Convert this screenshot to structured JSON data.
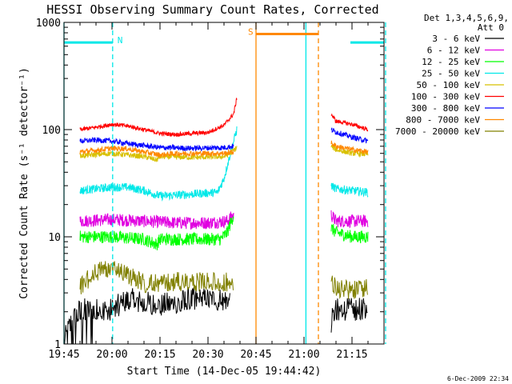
{
  "chart_data": {
    "type": "line",
    "title": "HESSI Observing Summary Count Rates, Corrected",
    "xlabel": "Start Time (14-Dec-05 19:44:42)",
    "ylabel": "Corrected Count Rate (s⁻¹ detector⁻¹)",
    "y_scale": "log",
    "ylim": [
      1,
      1000
    ],
    "x_units": "minutes since 19:45",
    "xlim": [
      0,
      100
    ],
    "x_ticks": [
      {
        "x": 0,
        "label": "19:45"
      },
      {
        "x": 15,
        "label": "20:00"
      },
      {
        "x": 30,
        "label": "20:15"
      },
      {
        "x": 45,
        "label": "20:30"
      },
      {
        "x": 60,
        "label": "20:45"
      },
      {
        "x": 75,
        "label": "21:00"
      },
      {
        "x": 90,
        "label": "21:15"
      }
    ],
    "y_ticks": [
      {
        "y": 1,
        "label": "1"
      },
      {
        "y": 10,
        "label": "10"
      },
      {
        "y": 100,
        "label": "100"
      },
      {
        "y": 1000,
        "label": "1000"
      }
    ],
    "legend": {
      "title_line1": "Det 1,3,4,5,6,9,",
      "title_line2": "Att 0",
      "placement": "right"
    },
    "series": [
      {
        "name": "3 - 6 keV",
        "color": "#000000",
        "noise": 0.35,
        "points": [
          [
            0,
            1.0
          ],
          [
            2,
            1.5
          ],
          [
            5,
            2.0
          ],
          [
            10,
            2.0
          ],
          [
            15,
            2.0
          ],
          [
            20,
            2.5
          ],
          [
            30,
            2.2
          ],
          [
            40,
            2.5
          ],
          [
            52,
            2.5
          ]
        ],
        "points2": [
          [
            83.5,
            1.5
          ],
          [
            85,
            2.0
          ],
          [
            90,
            2.0
          ],
          [
            95,
            2.0
          ]
        ]
      },
      {
        "name": "6 - 12 keV",
        "color": "#e000e0",
        "noise": 0.06,
        "points": [
          [
            5,
            14
          ],
          [
            15,
            14.5
          ],
          [
            25,
            14
          ],
          [
            35,
            13.5
          ],
          [
            45,
            13.5
          ],
          [
            51,
            14
          ],
          [
            53,
            16
          ]
        ],
        "points2": [
          [
            83.5,
            16
          ],
          [
            85,
            14
          ],
          [
            90,
            14
          ],
          [
            95,
            14
          ]
        ]
      },
      {
        "name": "12 - 25 keV",
        "color": "#00ff00",
        "noise": 0.06,
        "points": [
          [
            5,
            10
          ],
          [
            15,
            10
          ],
          [
            25,
            9.5
          ],
          [
            29,
            8.5
          ],
          [
            30,
            9.5
          ],
          [
            40,
            9.5
          ],
          [
            49,
            9.5
          ],
          [
            51,
            11
          ],
          [
            53,
            16
          ]
        ],
        "points2": [
          [
            83.5,
            12
          ],
          [
            85,
            11
          ],
          [
            90,
            10
          ],
          [
            95,
            10
          ]
        ]
      },
      {
        "name": "25 - 50 keV",
        "color": "#00e8e8",
        "noise": 0.04,
        "points": [
          [
            5,
            27
          ],
          [
            10,
            28
          ],
          [
            15,
            29
          ],
          [
            20,
            29
          ],
          [
            25,
            27
          ],
          [
            30,
            24
          ],
          [
            40,
            25
          ],
          [
            48,
            26
          ],
          [
            50,
            35
          ],
          [
            52,
            60
          ],
          [
            54,
            100
          ]
        ],
        "points2": [
          [
            83.5,
            30
          ],
          [
            85,
            28
          ],
          [
            90,
            27
          ],
          [
            95,
            26
          ]
        ]
      },
      {
        "name": "50 - 100 keV",
        "color": "#d8c000",
        "noise": 0.025,
        "points": [
          [
            5,
            57
          ],
          [
            15,
            60
          ],
          [
            25,
            56
          ],
          [
            29,
            52
          ],
          [
            30,
            56
          ],
          [
            40,
            55
          ],
          [
            50,
            56
          ],
          [
            52,
            60
          ],
          [
            54,
            68
          ]
        ],
        "points2": [
          [
            83.5,
            70
          ],
          [
            85,
            65
          ],
          [
            90,
            60
          ],
          [
            95,
            59
          ]
        ]
      },
      {
        "name": "100 - 300 keV",
        "color": "#ff0000",
        "noise": 0.02,
        "points": [
          [
            5,
            100
          ],
          [
            10,
            105
          ],
          [
            15,
            112
          ],
          [
            20,
            108
          ],
          [
            25,
            100
          ],
          [
            30,
            92
          ],
          [
            35,
            90
          ],
          [
            40,
            92
          ],
          [
            45,
            94
          ],
          [
            50,
            110
          ],
          [
            53,
            140
          ],
          [
            54,
            195
          ]
        ],
        "points2": [
          [
            83.5,
            140
          ],
          [
            85,
            120
          ],
          [
            90,
            112
          ],
          [
            95,
            100
          ]
        ]
      },
      {
        "name": "300 - 800 keV",
        "color": "#0000ff",
        "noise": 0.025,
        "points": [
          [
            5,
            78
          ],
          [
            10,
            80
          ],
          [
            15,
            78
          ],
          [
            20,
            74
          ],
          [
            30,
            68
          ],
          [
            40,
            67
          ],
          [
            50,
            68
          ],
          [
            53,
            70
          ]
        ],
        "points2": [
          [
            83.5,
            100
          ],
          [
            85,
            95
          ],
          [
            90,
            85
          ],
          [
            95,
            78
          ]
        ]
      },
      {
        "name": "800 - 7000 keV",
        "color": "#ff8800",
        "noise": 0.025,
        "points": [
          [
            5,
            62
          ],
          [
            10,
            64
          ],
          [
            15,
            67
          ],
          [
            20,
            66
          ],
          [
            25,
            62
          ],
          [
            30,
            58
          ],
          [
            35,
            60
          ],
          [
            40,
            60
          ],
          [
            50,
            60
          ],
          [
            53,
            62
          ]
        ],
        "points2": [
          [
            83.5,
            75
          ],
          [
            85,
            70
          ],
          [
            90,
            65
          ],
          [
            95,
            62
          ]
        ]
      },
      {
        "name": "7000 - 20000 keV",
        "color": "#808000",
        "noise": 0.3,
        "points": [
          [
            5,
            3.2
          ],
          [
            10,
            4.5
          ],
          [
            15,
            5.0
          ],
          [
            20,
            4.2
          ],
          [
            25,
            3.5
          ],
          [
            30,
            3.6
          ],
          [
            40,
            3.6
          ],
          [
            53,
            3.6
          ]
        ],
        "points2": [
          [
            83.5,
            3.5
          ],
          [
            85,
            3.2
          ],
          [
            90,
            3.0
          ],
          [
            95,
            3.2
          ]
        ]
      }
    ],
    "annotations": [
      {
        "kind": "night",
        "label": "N",
        "color": "#00e8e8",
        "x_start": 0,
        "x_end": 15.2,
        "y": 650
      },
      {
        "kind": "saa",
        "label": "S",
        "color": "#ff8800",
        "x_start": 60,
        "x_end": 79.5,
        "y": 780
      },
      {
        "kind": "night",
        "label": "",
        "color": "#00e8e8",
        "x_start": 89.5,
        "x_end": 100.5,
        "y": 650
      }
    ],
    "vlines": [
      {
        "x": 0,
        "color": "#00e8e8",
        "style": "solid"
      },
      {
        "x": 15.2,
        "color": "#00e8e8",
        "style": "dashed"
      },
      {
        "x": 60,
        "color": "#ff8800",
        "style": "solid"
      },
      {
        "x": 75.6,
        "color": "#00e8e8",
        "style": "solid"
      },
      {
        "x": 79.5,
        "color": "#ff8800",
        "style": "dashed"
      },
      {
        "x": 100.5,
        "color": "#00e8e8",
        "style": "dashed"
      }
    ],
    "footer": "6-Dec-2009 22:34"
  }
}
